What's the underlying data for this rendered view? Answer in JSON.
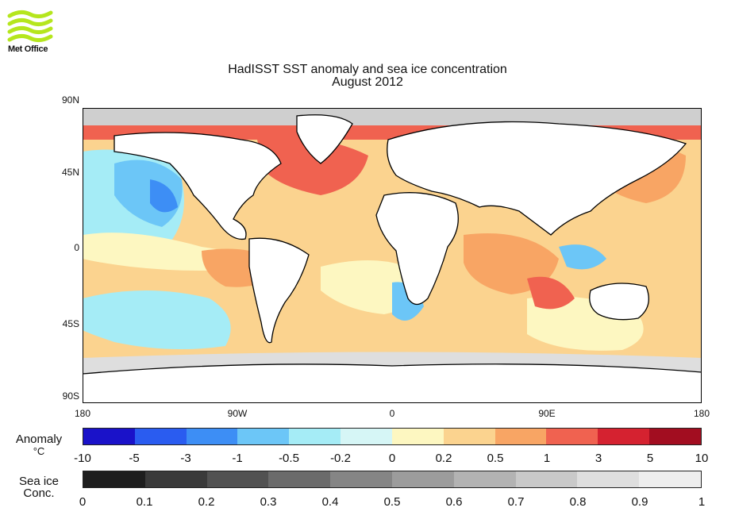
{
  "logo": {
    "name": "Met Office"
  },
  "title": {
    "line1": "HadISST SST anomaly and sea ice concentration",
    "line2": "August 2012"
  },
  "map": {
    "lat_labels": [
      "90N",
      "45N",
      "0",
      "45S",
      "90S"
    ],
    "lon_labels": [
      "180",
      "90W",
      "0",
      "90E",
      "180"
    ]
  },
  "anomaly_legend": {
    "label_line1": "Anomaly",
    "label_line2": "°C",
    "colors": [
      "#1a12c9",
      "#2a5cf0",
      "#3d8ef5",
      "#6cc6f7",
      "#a5ecf6",
      "#d6f6f6",
      "#fdf7c1",
      "#fbd38f",
      "#f8a564",
      "#f06250",
      "#d52230",
      "#a20d20"
    ],
    "ticks": [
      "-10",
      "-5",
      "-3",
      "-1",
      "-0.5",
      "-0.2",
      "0",
      "0.2",
      "0.5",
      "1",
      "3",
      "5",
      "10"
    ]
  },
  "ice_legend": {
    "label_line1": "Sea ice",
    "label_line2": "Conc.",
    "colors": [
      "#1e1e1e",
      "#3a3a3a",
      "#525252",
      "#6b6b6b",
      "#858585",
      "#9c9c9c",
      "#b3b3b3",
      "#c9c9c9",
      "#dedede",
      "#eeeeee"
    ],
    "ticks": [
      "0",
      "0.1",
      "0.2",
      "0.3",
      "0.4",
      "0.5",
      "0.6",
      "0.7",
      "0.8",
      "0.9",
      "1"
    ]
  }
}
